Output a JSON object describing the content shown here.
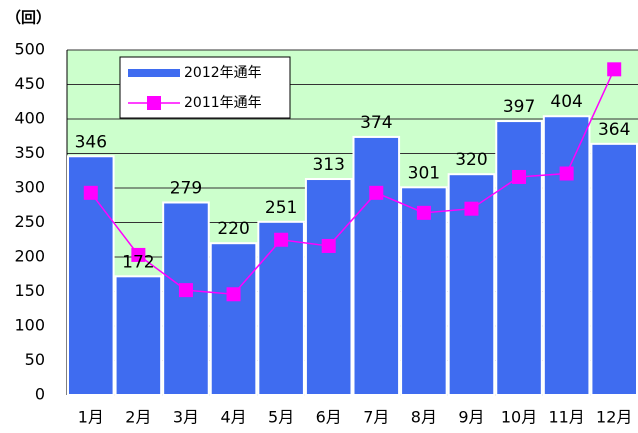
{
  "chart_data": {
    "type": "bar",
    "y_label": "（回）",
    "categories": [
      "1月",
      "2月",
      "3月",
      "4月",
      "5月",
      "6月",
      "7月",
      "8月",
      "9月",
      "10月",
      "11月",
      "12月"
    ],
    "series": [
      {
        "name": "2012年通年",
        "type": "bar",
        "color": "#3f6cf0",
        "values": [
          346,
          172,
          279,
          220,
          251,
          313,
          374,
          301,
          320,
          397,
          404,
          364
        ]
      },
      {
        "name": "2011年通年",
        "type": "line",
        "color": "#ff00ff",
        "values": [
          293,
          203,
          152,
          146,
          225,
          216,
          293,
          264,
          270,
          316,
          321,
          472
        ]
      }
    ],
    "ylim": [
      0,
      500
    ],
    "yticks": [
      0,
      50,
      100,
      150,
      200,
      250,
      300,
      350,
      400,
      450,
      500
    ],
    "grid": true,
    "background": "#ccffcc",
    "legend": "upper left"
  }
}
